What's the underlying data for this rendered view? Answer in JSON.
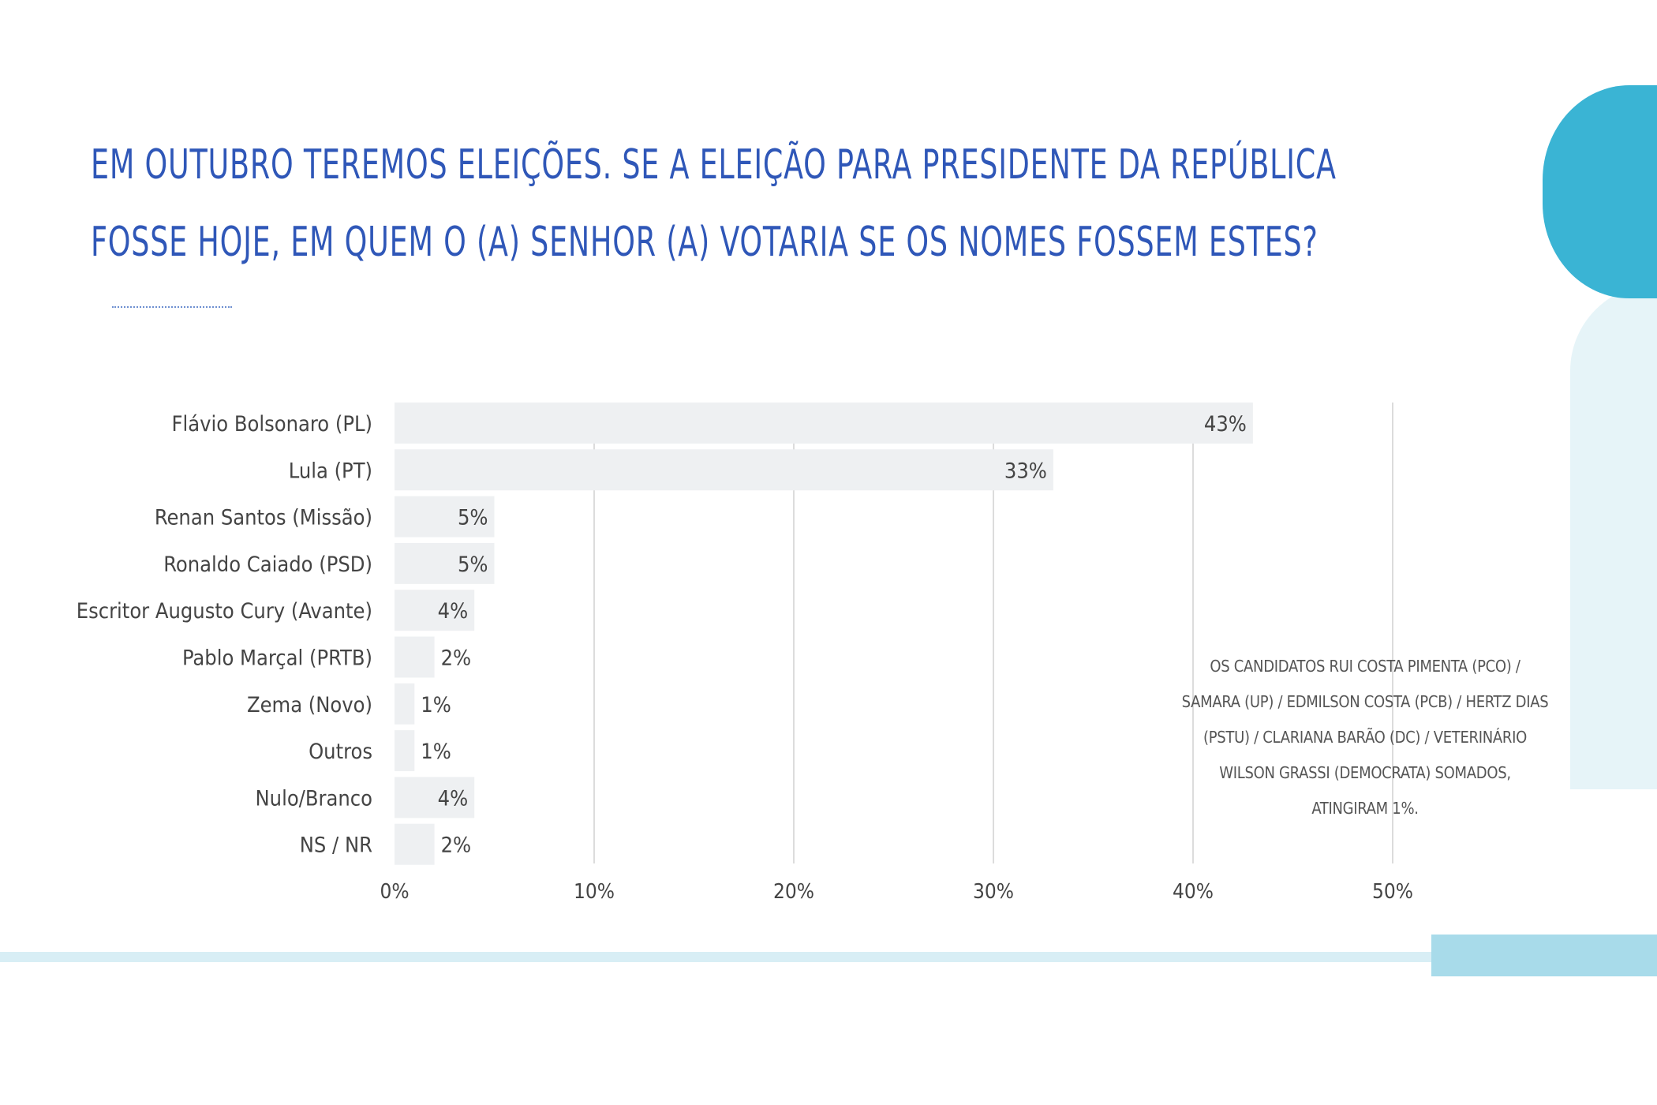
{
  "title": {
    "line1": "EM OUTUBRO TEREMOS ELEIÇÕES. SE A ELEIÇÃO PARA PRESIDENTE DA REPÚBLICA",
    "line2": "FOSSE HOJE, EM QUEM O (A) SENHOR (A) VOTARIA SE OS NOMES FOSSEM ESTES?"
  },
  "footnote": "OS CANDIDATOS RUI COSTA PIMENTA (PCO) / SAMARA (UP) / EDMILSON COSTA (PCB) / HERTZ DIAS (PSTU) / CLARIANA BARÃO (DC) / VETERINÁRIO WILSON GRASSI (DEMOCRATA) SOMADOS, ATINGIRAM 1%.",
  "colors": {
    "title": "#2f57b8",
    "bar": "#eef0f2",
    "grid": "#d0d0d0",
    "text": "#444444",
    "accent": "#3ab4d4"
  },
  "chart_data": {
    "type": "bar",
    "orientation": "horizontal",
    "categories": [
      "Flávio Bolsonaro (PL)",
      "Lula (PT)",
      "Renan Santos (Missão)",
      "Ronaldo Caiado (PSD)",
      "Escritor Augusto Cury (Avante)",
      "Pablo Marçal (PRTB)",
      "Zema (Novo)",
      "Outros",
      "Nulo/Branco",
      "NS / NR"
    ],
    "values": [
      43,
      33,
      5,
      5,
      4,
      2,
      1,
      1,
      4,
      2
    ],
    "data_labels": [
      "43%",
      "33%",
      "5%",
      "5%",
      "4%",
      "2%",
      "1%",
      "1%",
      "4%",
      "2%"
    ],
    "xlim": [
      0,
      50
    ],
    "xticks": [
      0,
      10,
      20,
      30,
      40,
      50
    ],
    "xtick_labels": [
      "0%",
      "10%",
      "20%",
      "30%",
      "40%",
      "50%"
    ],
    "grid": "vertical",
    "legend": "none",
    "title": "",
    "xlabel": "",
    "ylabel": ""
  }
}
